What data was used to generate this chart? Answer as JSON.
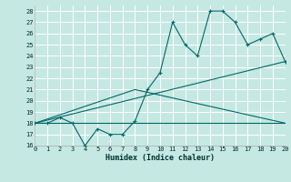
{
  "xlabel": "Humidex (Indice chaleur)",
  "xlim": [
    0,
    20
  ],
  "ylim": [
    16,
    28.5
  ],
  "yticks": [
    16,
    17,
    18,
    19,
    20,
    21,
    22,
    23,
    24,
    25,
    26,
    27,
    28
  ],
  "xticks": [
    0,
    1,
    2,
    3,
    4,
    5,
    6,
    7,
    8,
    9,
    10,
    11,
    12,
    13,
    14,
    15,
    16,
    17,
    18,
    19,
    20
  ],
  "bg_color": "#c5e8e2",
  "grid_color": "#b0d8d0",
  "line_color": "#006868",
  "line1_x": [
    0,
    1,
    2,
    3,
    4,
    5,
    6,
    7,
    8,
    9,
    10,
    11,
    12,
    13,
    14,
    15,
    16,
    17,
    18,
    19,
    20
  ],
  "line1_y": [
    18,
    18,
    18.5,
    18,
    16,
    17.5,
    17,
    17,
    18.2,
    21,
    22.5,
    27,
    25,
    24,
    28,
    28,
    27,
    25,
    25.5,
    26,
    23.5
  ],
  "line2_x": [
    0,
    20
  ],
  "line2_y": [
    18,
    18
  ],
  "line3_x": [
    0,
    20
  ],
  "line3_y": [
    18,
    23.5
  ],
  "line4_x": [
    0,
    8,
    20
  ],
  "line4_y": [
    18,
    21,
    18
  ]
}
